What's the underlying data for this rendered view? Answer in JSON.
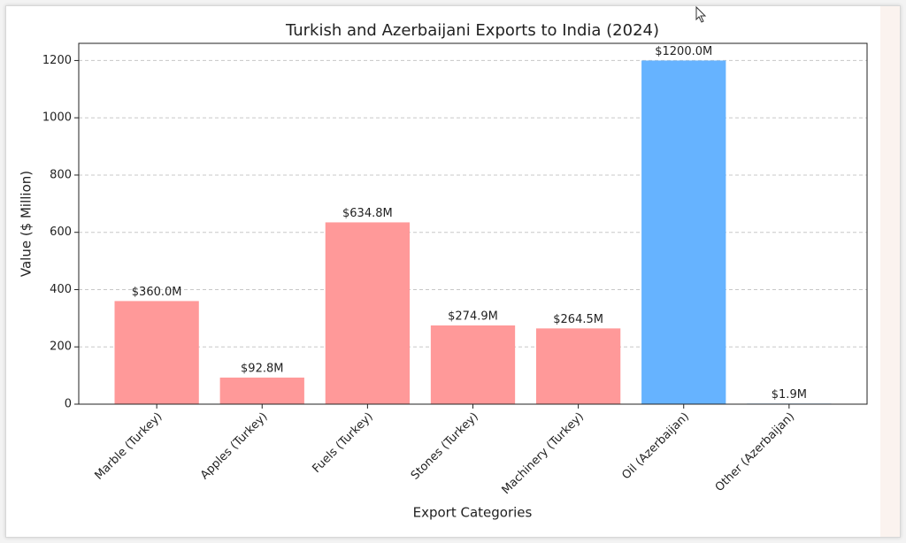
{
  "chart_data": {
    "type": "bar",
    "title": "Turkish and Azerbaijani Exports to India (2024)",
    "x_label": "Export Categories",
    "y_label": "Value ($ Million)",
    "categories": [
      "Marble (Turkey)",
      "Apples (Turkey)",
      "Fuels (Turkey)",
      "Stones (Turkey)",
      "Machinery (Turkey)",
      "Oil (Azerbaijan)",
      "Other (Azerbaijan)"
    ],
    "values": [
      360.0,
      92.8,
      634.8,
      274.9,
      264.5,
      1200.0,
      1.9
    ],
    "value_labels": [
      "$360.0M",
      "$92.8M",
      "$634.8M",
      "$274.9M",
      "$264.5M",
      "$1200.0M",
      "$1.9M"
    ],
    "colors": [
      "#ff9999",
      "#ff9999",
      "#ff9999",
      "#ff9999",
      "#ff9999",
      "#66b3ff",
      "#66b3ff"
    ],
    "ylim": [
      0,
      1260
    ],
    "yticks": [
      0,
      200,
      400,
      600,
      800,
      1000,
      1200
    ],
    "grid": true
  }
}
